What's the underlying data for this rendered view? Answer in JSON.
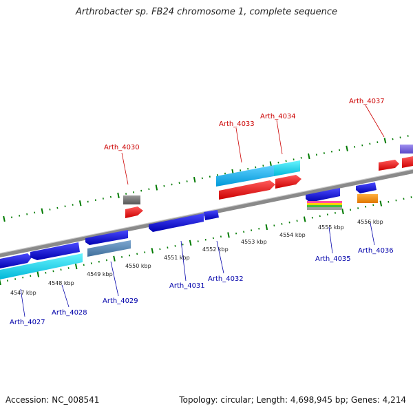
{
  "title": "Arthrobacter sp. FB24 chromosome 1, complete sequence",
  "footer": {
    "accession": "Accession: NC_008541",
    "stats": "Topology: circular; Length: 4,698,945 bp; Genes: 4,214"
  },
  "ticks": [
    "4547 kbp",
    "4548 kbp",
    "4549 kbp",
    "4550 kbp",
    "4551 kbp",
    "4552 kbp",
    "4553 kbp",
    "4554 kbp",
    "4555 kbp",
    "4556 kbp"
  ],
  "colors": {
    "forward_label": "#cc0000",
    "reverse_label": "#0000aa",
    "cds": "#ff0000",
    "cds_reverse": "#0000ee",
    "backbone": "#888888",
    "tick": "#007a00"
  },
  "genes": {
    "forward": [
      "Arth_4030",
      "Arth_4033",
      "Arth_4034",
      "Arth_4037"
    ],
    "reverse": [
      "Arth_4027",
      "Arth_4028",
      "Arth_4029",
      "Arth_4031",
      "Arth_4032",
      "Arth_4035",
      "Arth_4036"
    ]
  }
}
